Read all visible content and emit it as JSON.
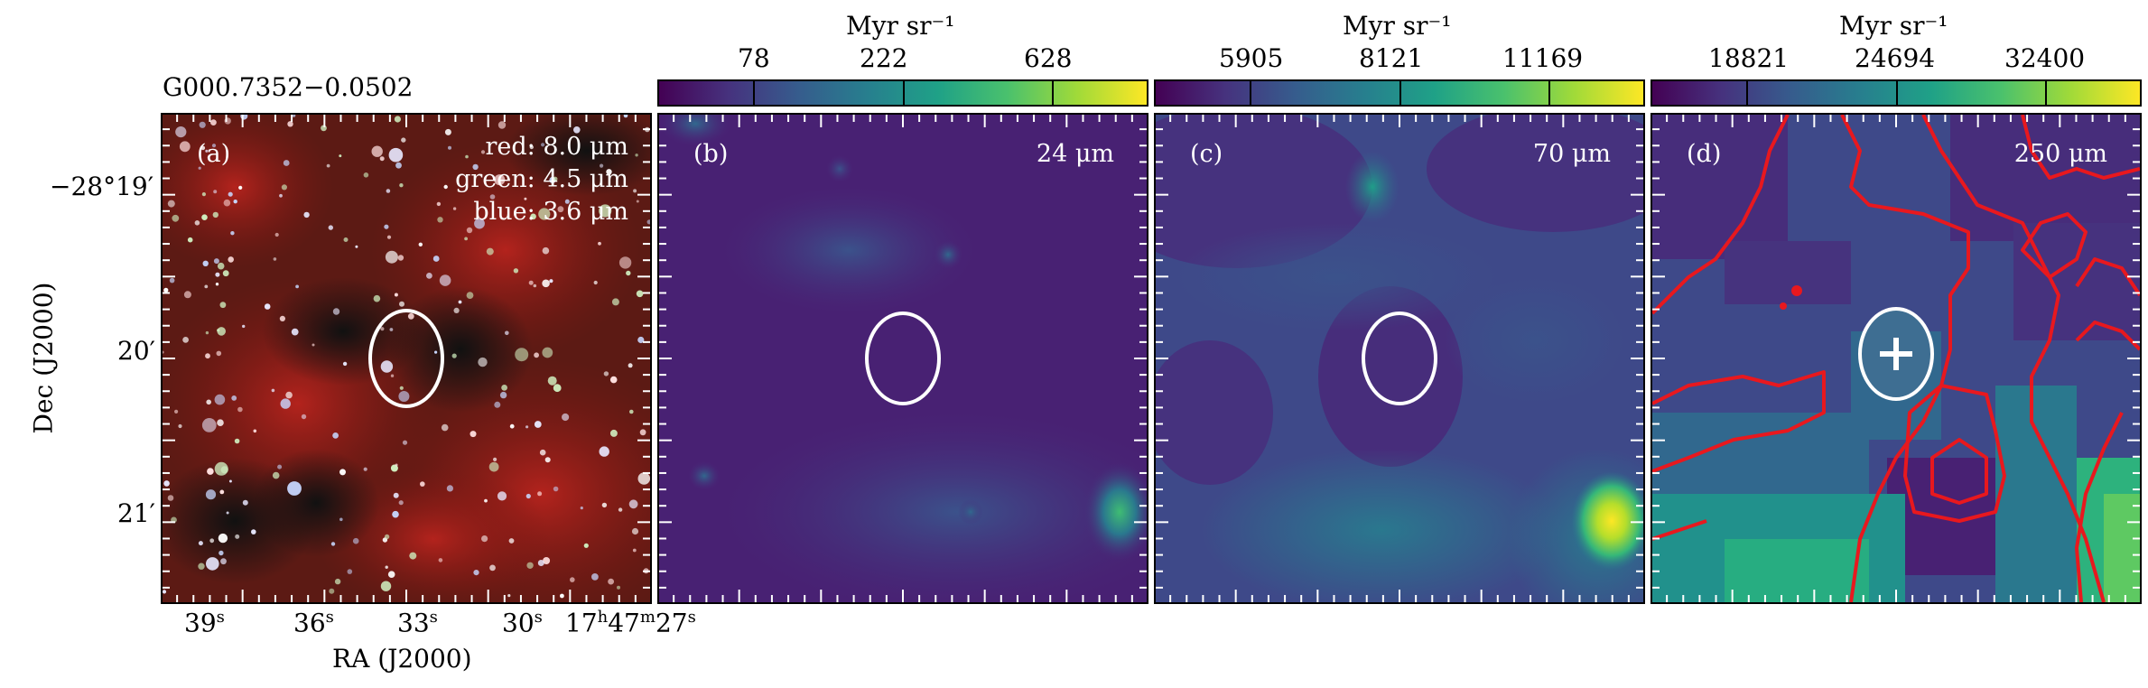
{
  "source_title": "G000.7352−0.0502",
  "axes": {
    "ylabel": "Dec (J2000)",
    "xlabel": "RA (J2000)",
    "dec_ticks": [
      "−28°19′",
      "20′",
      "21′"
    ],
    "ra_ticks": [
      "39",
      "36",
      "33",
      "30",
      "17"
    ],
    "ra_tick_suffix": [
      "s",
      "s",
      "s",
      "s",
      "h"
    ],
    "ra_last_min": "47",
    "ra_last_min_suffix": "m",
    "ra_last_sec": "27",
    "ra_last_sec_suffix": "s"
  },
  "panels": [
    {
      "id": "a",
      "label": "(a)",
      "legend": [
        "red: 8.0 μm",
        "green: 4.5 μm",
        "blue: 3.6 μm"
      ]
    },
    {
      "id": "b",
      "label": "(b)",
      "wavelength": "24 μm",
      "colorbar_unit": "Myr sr⁻¹",
      "colorbar_ticks": [
        "78",
        "222",
        "628"
      ]
    },
    {
      "id": "c",
      "label": "(c)",
      "wavelength": "70 μm",
      "colorbar_unit": "Myr sr⁻¹",
      "colorbar_ticks": [
        "5905",
        "8121",
        "11169"
      ]
    },
    {
      "id": "d",
      "label": "(d)",
      "wavelength": "250 μm",
      "colorbar_unit": "Myr sr⁻¹",
      "colorbar_ticks": [
        "18821",
        "24694",
        "32400"
      ]
    }
  ],
  "colors": {
    "colormap": "viridis",
    "contour": "#e8181e",
    "ellipse": "#ffffff"
  }
}
